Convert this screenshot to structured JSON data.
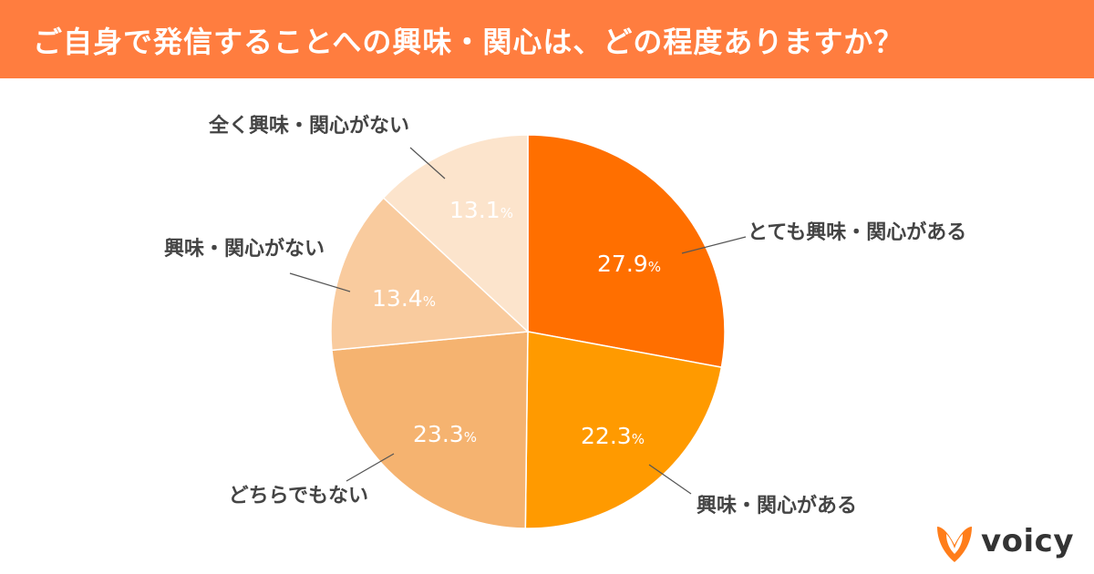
{
  "header": {
    "title": "ご自身で発信することへの興味・関心は、どの程度ありますか？",
    "background_color": "#FF7D3F"
  },
  "brand": {
    "logo_text": "voicy",
    "logo_icon": "voicy-mark-icon",
    "accent_color": "#FF7D1A"
  },
  "chart_data": {
    "type": "pie",
    "title": "ご自身で発信することへの興味・関心は、どの程度ありますか？",
    "unit": "%",
    "slices": [
      {
        "label": "とても興味・関心がある",
        "value": 27.9,
        "display": "27.9",
        "color": "#FF6F00"
      },
      {
        "label": "興味・関心がある",
        "value": 22.3,
        "display": "22.3",
        "color": "#FF9A00"
      },
      {
        "label": "どちらでもない",
        "value": 23.3,
        "display": "23.3",
        "color": "#F5B370"
      },
      {
        "label": "興味・関心がない",
        "value": 13.4,
        "display": "13.4",
        "color": "#F9CB9E"
      },
      {
        "label": "全く興味・関心がない",
        "value": 13.1,
        "display": "13.1",
        "color": "#FCE4CC"
      }
    ]
  }
}
